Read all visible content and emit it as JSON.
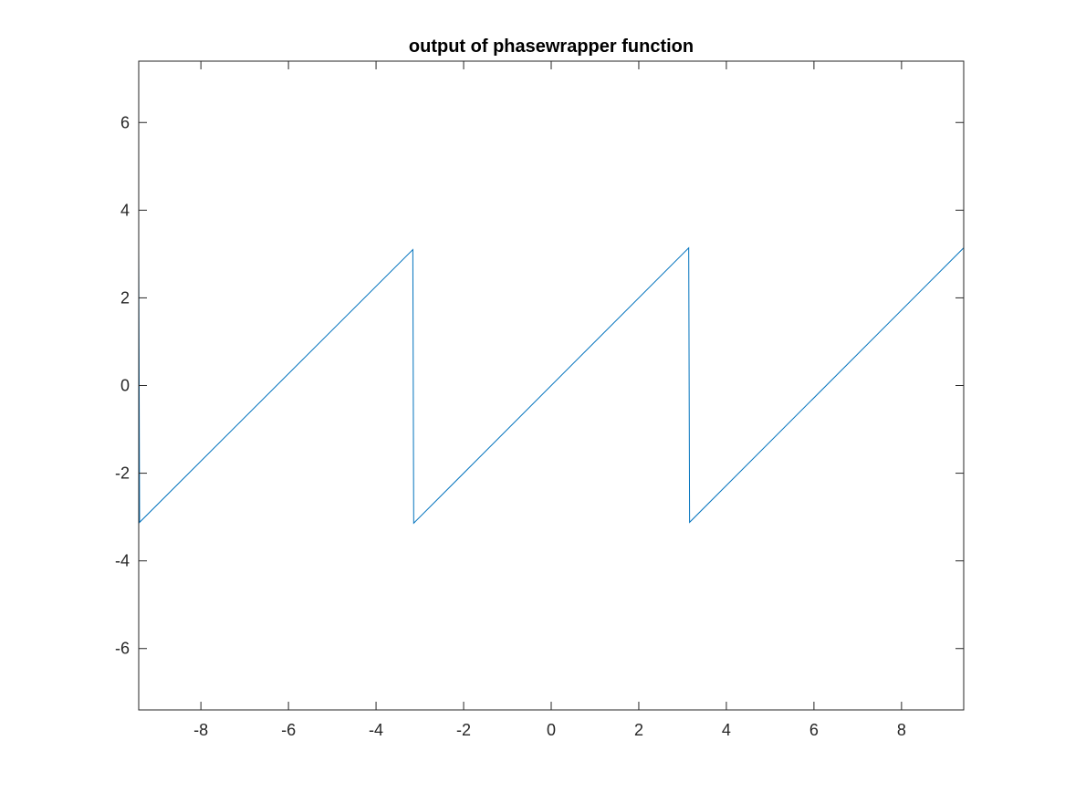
{
  "chart_data": {
    "type": "line",
    "title": "output of phasewrapper function",
    "xlabel": "",
    "ylabel": "",
    "xlim": [
      -9.42,
      9.42
    ],
    "ylim": [
      -7.4,
      7.4
    ],
    "xticks": [
      -8,
      -6,
      -4,
      -2,
      0,
      2,
      4,
      6,
      8
    ],
    "yticks": [
      -6,
      -4,
      -2,
      0,
      2,
      4,
      6
    ],
    "xtick_labels": [
      "-8",
      "-6",
      "-4",
      "-2",
      "0",
      "2",
      "4",
      "6",
      "8"
    ],
    "ytick_labels": [
      "-6",
      "-4",
      "-2",
      "0",
      "2",
      "4",
      "6"
    ],
    "grid": false,
    "box": true,
    "series": [
      {
        "color": "#0072bd",
        "x": [
          -9.42,
          -9.4,
          -3.16,
          -3.14,
          3.14,
          3.16,
          9.42
        ],
        "y": [
          3.12,
          -3.12,
          3.1,
          -3.14,
          3.14,
          -3.12,
          3.14
        ]
      }
    ]
  }
}
